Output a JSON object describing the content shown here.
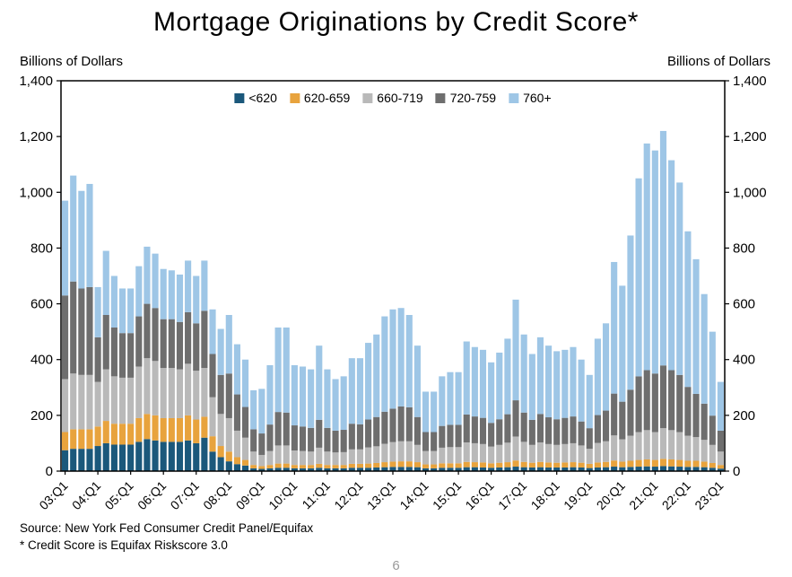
{
  "title": "Mortgage Originations by Credit Score*",
  "y_axis_label_left": "Billions of Dollars",
  "y_axis_label_right": "Billions of Dollars",
  "footer": {
    "source": "Source: New York Fed Consumer Credit Panel/Equifax",
    "note": "* Credit Score is Equifax Riskscore 3.0",
    "page_number": "6"
  },
  "chart_data": {
    "type": "bar",
    "stacked": true,
    "title": "Mortgage Originations by Credit Score*",
    "xlabel": "",
    "ylabel": "Billions of Dollars",
    "ylim": [
      0,
      1400
    ],
    "y_ticks": [
      0,
      200,
      400,
      600,
      800,
      1000,
      1200,
      1400
    ],
    "y_tick_labels": [
      "0",
      "200",
      "400",
      "600",
      "800",
      "1,000",
      "1,200",
      "1,400"
    ],
    "grid": false,
    "legend_position": "top-center-inside",
    "x_tick_labels": [
      "03:Q1",
      "04:Q1",
      "05:Q1",
      "06:Q1",
      "07:Q1",
      "08:Q1",
      "09:Q1",
      "10:Q1",
      "11:Q1",
      "12:Q1",
      "13:Q1",
      "14:Q1",
      "15:Q1",
      "16:Q1",
      "17:Q1",
      "18:Q1",
      "19:Q1",
      "20:Q1",
      "21:Q1",
      "22:Q1",
      "23:Q1"
    ],
    "x": [
      "03:Q1",
      "03:Q2",
      "03:Q3",
      "03:Q4",
      "04:Q1",
      "04:Q2",
      "04:Q3",
      "04:Q4",
      "05:Q1",
      "05:Q2",
      "05:Q3",
      "05:Q4",
      "06:Q1",
      "06:Q2",
      "06:Q3",
      "06:Q4",
      "07:Q1",
      "07:Q2",
      "07:Q3",
      "07:Q4",
      "08:Q1",
      "08:Q2",
      "08:Q3",
      "08:Q4",
      "09:Q1",
      "09:Q2",
      "09:Q3",
      "09:Q4",
      "10:Q1",
      "10:Q2",
      "10:Q3",
      "10:Q4",
      "11:Q1",
      "11:Q2",
      "11:Q3",
      "11:Q4",
      "12:Q1",
      "12:Q2",
      "12:Q3",
      "12:Q4",
      "13:Q1",
      "13:Q2",
      "13:Q3",
      "13:Q4",
      "14:Q1",
      "14:Q2",
      "14:Q3",
      "14:Q4",
      "15:Q1",
      "15:Q2",
      "15:Q3",
      "15:Q4",
      "16:Q1",
      "16:Q2",
      "16:Q3",
      "16:Q4",
      "17:Q1",
      "17:Q2",
      "17:Q3",
      "17:Q4",
      "18:Q1",
      "18:Q2",
      "18:Q3",
      "18:Q4",
      "19:Q1",
      "19:Q2",
      "19:Q3",
      "19:Q4",
      "20:Q1",
      "20:Q2",
      "20:Q3",
      "20:Q4",
      "21:Q1",
      "21:Q2",
      "21:Q3",
      "21:Q4",
      "22:Q1",
      "22:Q2",
      "22:Q3",
      "22:Q4",
      "23:Q1"
    ],
    "series": [
      {
        "name": "<620",
        "color": "#1b587b",
        "values": [
          75,
          80,
          80,
          80,
          90,
          100,
          95,
          95,
          95,
          105,
          115,
          110,
          105,
          105,
          105,
          110,
          100,
          120,
          70,
          50,
          35,
          25,
          20,
          10,
          8,
          10,
          12,
          12,
          10,
          10,
          10,
          12,
          10,
          10,
          10,
          12,
          12,
          12,
          13,
          14,
          15,
          15,
          15,
          14,
          10,
          10,
          12,
          12,
          12,
          14,
          14,
          13,
          12,
          13,
          14,
          16,
          14,
          13,
          14,
          13,
          13,
          13,
          14,
          13,
          11,
          13,
          14,
          16,
          14,
          15,
          16,
          17,
          16,
          18,
          17,
          16,
          15,
          15,
          14,
          12,
          9
        ]
      },
      {
        "name": "620-659",
        "color": "#e8a33d",
        "values": [
          65,
          70,
          70,
          70,
          70,
          80,
          75,
          75,
          75,
          85,
          90,
          90,
          85,
          85,
          85,
          90,
          85,
          75,
          55,
          40,
          35,
          25,
          20,
          12,
          10,
          12,
          15,
          15,
          12,
          12,
          12,
          14,
          12,
          12,
          12,
          14,
          14,
          15,
          16,
          18,
          19,
          20,
          20,
          18,
          14,
          14,
          16,
          16,
          16,
          19,
          18,
          18,
          16,
          17,
          18,
          22,
          19,
          17,
          19,
          18,
          17,
          18,
          18,
          17,
          15,
          18,
          19,
          22,
          20,
          22,
          24,
          25,
          24,
          26,
          25,
          24,
          22,
          22,
          20,
          17,
          13
        ]
      },
      {
        "name": "660-719",
        "color": "#b9b9b9",
        "values": [
          190,
          200,
          195,
          195,
          160,
          185,
          170,
          165,
          165,
          185,
          200,
          195,
          180,
          180,
          175,
          185,
          175,
          175,
          140,
          115,
          120,
          95,
          80,
          48,
          40,
          50,
          65,
          65,
          52,
          50,
          48,
          58,
          48,
          45,
          46,
          52,
          52,
          58,
          60,
          66,
          70,
          72,
          72,
          62,
          48,
          48,
          56,
          58,
          58,
          70,
          68,
          66,
          60,
          64,
          70,
          86,
          72,
          64,
          70,
          66,
          64,
          66,
          68,
          62,
          54,
          70,
          74,
          90,
          80,
          90,
          100,
          105,
          100,
          110,
          105,
          100,
          90,
          85,
          78,
          65,
          48
        ]
      },
      {
        "name": "720-759",
        "color": "#6e6e6e",
        "values": [
          300,
          330,
          310,
          315,
          160,
          195,
          175,
          160,
          160,
          180,
          195,
          190,
          175,
          175,
          170,
          185,
          170,
          205,
          155,
          140,
          160,
          130,
          110,
          80,
          77,
          95,
          120,
          118,
          90,
          88,
          85,
          100,
          85,
          78,
          80,
          92,
          90,
          100,
          105,
          115,
          120,
          125,
          122,
          100,
          68,
          68,
          78,
          80,
          80,
          100,
          96,
          94,
          85,
          92,
          102,
          130,
          105,
          90,
          102,
          96,
          92,
          94,
          96,
          86,
          74,
          100,
          110,
          150,
          135,
          165,
          200,
          215,
          210,
          225,
          215,
          205,
          175,
          155,
          130,
          105,
          75
        ]
      },
      {
        "name": "760+",
        "color": "#9ec6e6",
        "values": [
          340,
          380,
          350,
          370,
          180,
          230,
          185,
          160,
          160,
          180,
          205,
          195,
          180,
          175,
          170,
          185,
          170,
          180,
          160,
          165,
          210,
          180,
          170,
          140,
          160,
          213,
          303,
          305,
          216,
          215,
          210,
          266,
          210,
          185,
          192,
          235,
          237,
          275,
          296,
          342,
          356,
          353,
          331,
          256,
          145,
          145,
          178,
          189,
          189,
          262,
          249,
          244,
          217,
          239,
          271,
          361,
          280,
          236,
          275,
          257,
          244,
          244,
          249,
          222,
          191,
          274,
          313,
          472,
          416,
          553,
          710,
          813,
          800,
          841,
          753,
          690,
          558,
          483,
          393,
          301,
          175
        ]
      }
    ]
  }
}
